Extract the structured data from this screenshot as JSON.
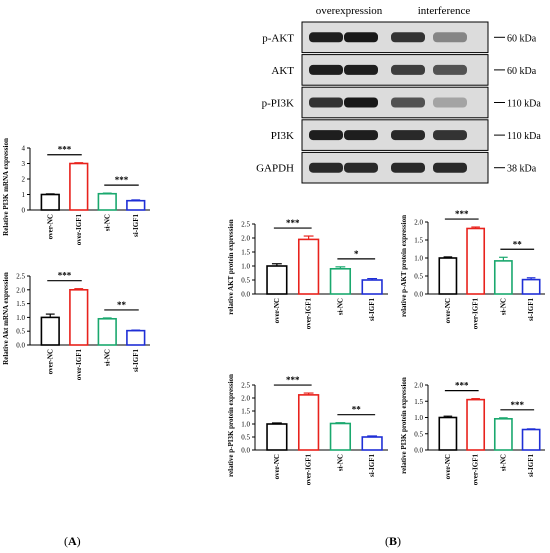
{
  "panel_labels": {
    "a": "(A)",
    "a_letter": "A",
    "b": "(B)",
    "b_letter": "B"
  },
  "blot": {
    "conditions": [
      "overexpression",
      "interference"
    ],
    "rows": [
      {
        "label": "p-AKT",
        "marker": "60 kDa",
        "intensity": [
          0.95,
          0.98,
          0.85,
          0.45
        ]
      },
      {
        "label": "AKT",
        "marker": "60 kDa",
        "intensity": [
          0.95,
          0.95,
          0.8,
          0.7
        ]
      },
      {
        "label": "p-PI3K",
        "marker": "110 kDa",
        "intensity": [
          0.85,
          0.98,
          0.7,
          0.3
        ]
      },
      {
        "label": "PI3K",
        "marker": "110 kDa",
        "intensity": [
          0.95,
          0.95,
          0.9,
          0.85
        ]
      },
      {
        "label": "GAPDH",
        "marker": "38 kDa",
        "intensity": [
          0.9,
          0.9,
          0.9,
          0.9
        ]
      }
    ]
  },
  "colors": {
    "over-NC": "#000000",
    "over-IGF1": "#e8221c",
    "si-NC": "#1aa86e",
    "si-IGF1": "#1f2fd6"
  },
  "chart_data": [
    {
      "id": "pi3k-mrna",
      "type": "bar",
      "ylabel": "Relative PI3K mRNA expression",
      "categories": [
        "over-NC",
        "over-IGF1",
        "si-NC",
        "si-IGF1"
      ],
      "values": [
        1.0,
        3.0,
        1.05,
        0.6
      ],
      "errors": [
        0.04,
        0.05,
        0.04,
        0.05
      ],
      "ylim": [
        0,
        4
      ],
      "yticks": [
        "0",
        "1",
        "2",
        "3",
        "4"
      ],
      "significance": [
        {
          "pair": [
            0,
            1
          ],
          "label": "***"
        },
        {
          "pair": [
            2,
            3
          ],
          "label": "***"
        }
      ]
    },
    {
      "id": "akt-mrna",
      "type": "bar",
      "ylabel": "Relative Akt mRNA expression",
      "categories": [
        "over-NC",
        "over-IGF1",
        "si-NC",
        "si-IGF1"
      ],
      "values": [
        1.0,
        2.0,
        0.95,
        0.52
      ],
      "errors": [
        0.12,
        0.04,
        0.03,
        0.02
      ],
      "ylim": [
        0,
        2.5
      ],
      "yticks": [
        "0.0",
        "0.5",
        "1.0",
        "1.5",
        "2.0",
        "2.5"
      ],
      "significance": [
        {
          "pair": [
            0,
            1
          ],
          "label": "***"
        },
        {
          "pair": [
            2,
            3
          ],
          "label": "**"
        }
      ]
    },
    {
      "id": "akt-protein",
      "type": "bar",
      "ylabel": "relative AKT protein expression",
      "categories": [
        "over-NC",
        "over-IGF1",
        "si-NC",
        "si-IGF1"
      ],
      "values": [
        1.0,
        1.95,
        0.9,
        0.5
      ],
      "errors": [
        0.08,
        0.12,
        0.07,
        0.05
      ],
      "ylim": [
        0,
        2.5
      ],
      "yticks": [
        "0.0",
        "0.5",
        "1.0",
        "1.5",
        "2.0",
        "2.5"
      ],
      "significance": [
        {
          "pair": [
            0,
            1
          ],
          "label": "***"
        },
        {
          "pair": [
            2,
            3
          ],
          "label": "*"
        }
      ]
    },
    {
      "id": "p-akt-protein",
      "type": "bar",
      "ylabel": "relative p-AKT protein expression",
      "categories": [
        "over-NC",
        "over-IGF1",
        "si-NC",
        "si-IGF1"
      ],
      "values": [
        1.0,
        1.82,
        0.92,
        0.4
      ],
      "errors": [
        0.03,
        0.04,
        0.1,
        0.05
      ],
      "ylim": [
        0,
        2.0
      ],
      "yticks": [
        "0.0",
        "0.5",
        "1.0",
        "1.5",
        "2.0"
      ],
      "significance": [
        {
          "pair": [
            0,
            1
          ],
          "label": "***"
        },
        {
          "pair": [
            2,
            3
          ],
          "label": "**"
        }
      ]
    },
    {
      "id": "p-pi3k-protein",
      "type": "bar",
      "ylabel": "relative p-PI3K protein expression",
      "categories": [
        "over-NC",
        "over-IGF1",
        "si-NC",
        "si-IGF1"
      ],
      "values": [
        1.0,
        2.12,
        1.02,
        0.5
      ],
      "errors": [
        0.04,
        0.07,
        0.03,
        0.04
      ],
      "ylim": [
        0,
        2.5
      ],
      "yticks": [
        "0.0",
        "0.5",
        "1.0",
        "1.5",
        "2.0",
        "2.5"
      ],
      "significance": [
        {
          "pair": [
            0,
            1
          ],
          "label": "***"
        },
        {
          "pair": [
            2,
            3
          ],
          "label": "**"
        }
      ]
    },
    {
      "id": "pi3k-protein",
      "type": "bar",
      "ylabel": "relative PI3K protein expression",
      "categories": [
        "over-NC",
        "over-IGF1",
        "si-NC",
        "si-IGF1"
      ],
      "values": [
        1.0,
        1.55,
        0.96,
        0.63
      ],
      "errors": [
        0.04,
        0.03,
        0.03,
        0.02
      ],
      "ylim": [
        0,
        2.0
      ],
      "yticks": [
        "0.0",
        "0.5",
        "1.0",
        "1.5",
        "2.0"
      ],
      "significance": [
        {
          "pair": [
            0,
            1
          ],
          "label": "***"
        },
        {
          "pair": [
            2,
            3
          ],
          "label": "***"
        }
      ]
    }
  ]
}
